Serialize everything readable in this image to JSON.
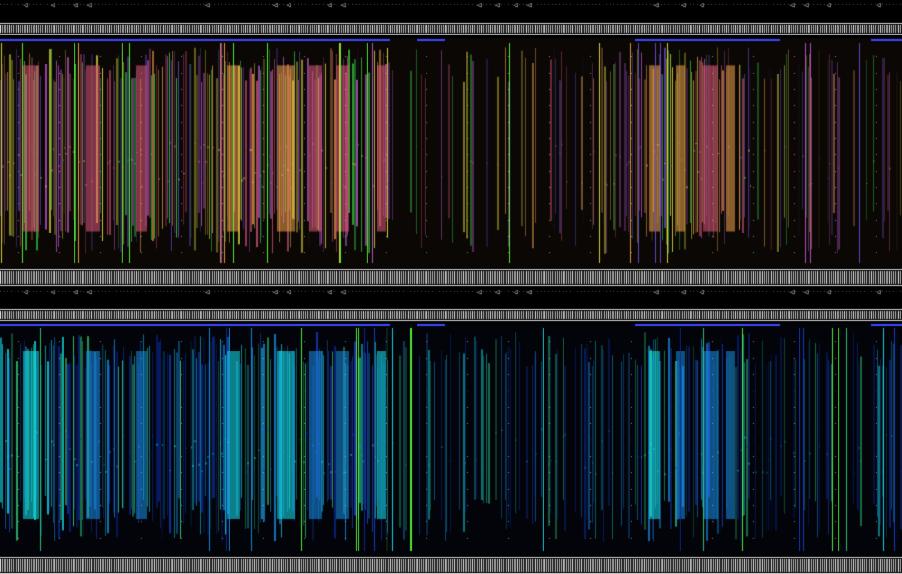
{
  "view": {
    "panels": [
      {
        "id": "upper",
        "colormap": "multicolor",
        "colors": [
          "#e0577a",
          "#f2a24b",
          "#e8e23c",
          "#3fdc4a",
          "#6a4fc9",
          "#c05ad0"
        ]
      },
      {
        "id": "lower",
        "colormap": "cyan-blue",
        "colors": [
          "#16e6f0",
          "#1a8fe6",
          "#1b3fd0",
          "#34d17a",
          "#0c2a9a"
        ]
      }
    ],
    "frame_colors": {
      "background": "#000000",
      "ruler_line": "#d8d8d8",
      "ruler_tick": "#bdbdbd",
      "selection_marker": "#3b49ff",
      "bright_column": "#5cff3a"
    },
    "ruler_glyphs": "aaaa",
    "marker_glyph": "◁",
    "icons": [
      "left-arrow-marker-icon"
    ]
  }
}
